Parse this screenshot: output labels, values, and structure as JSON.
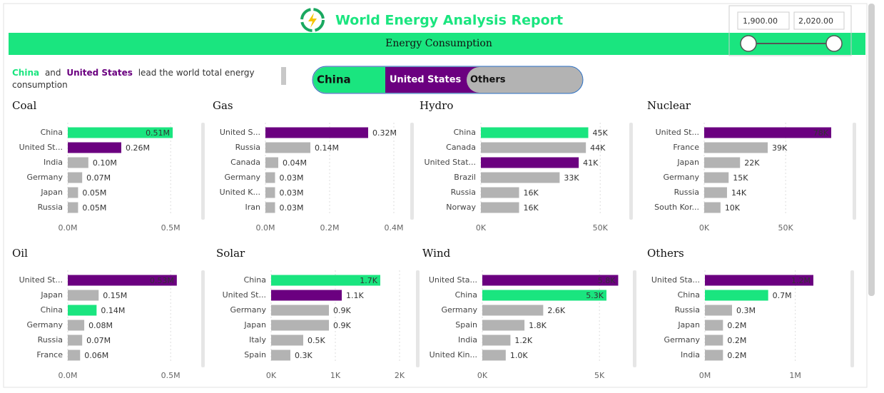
{
  "header": {
    "title": "World Energy Analysis Report",
    "subtitle": "Energy Consumption"
  },
  "year_slider": {
    "from": "1,900.00",
    "to": "2,020.00"
  },
  "summary": [
    "China",
    "and",
    "United States",
    "lead the world total energy",
    "consumption"
  ],
  "legend_buttons": [
    "China",
    "United States",
    "Others"
  ],
  "chart_data": [
    {
      "type": "bar",
      "orientation": "horizontal",
      "title": "Coal",
      "categories": [
        "China",
        "United St...",
        "India",
        "Germany",
        "Japan",
        "Russia"
      ],
      "values": [
        0.51,
        0.26,
        0.1,
        0.07,
        0.05,
        0.05
      ],
      "value_labels": [
        "0.51M",
        "0.26M",
        "0.10M",
        "0.07M",
        "0.05M",
        "0.05M"
      ],
      "colors": [
        "#1ae57f",
        "#6b0080",
        "#b3b3b3",
        "#b3b3b3",
        "#b3b3b3",
        "#b3b3b3"
      ],
      "xlim": [
        0,
        0.6
      ],
      "xticks": [
        {
          "value": 0,
          "label": "0.0M"
        },
        {
          "value": 0.5,
          "label": "0.5M"
        }
      ],
      "grid": true
    },
    {
      "type": "bar",
      "orientation": "horizontal",
      "title": "Gas",
      "categories": [
        "United S...",
        "Russia",
        "Canada",
        "Germany",
        "United K...",
        "Iran"
      ],
      "values": [
        0.32,
        0.14,
        0.04,
        0.03,
        0.03,
        0.03
      ],
      "value_labels": [
        "0.32M",
        "0.14M",
        "0.04M",
        "0.03M",
        "0.03M",
        "0.03M"
      ],
      "colors": [
        "#6b0080",
        "#b3b3b3",
        "#b3b3b3",
        "#b3b3b3",
        "#b3b3b3",
        "#b3b3b3"
      ],
      "xlim": [
        0,
        0.42
      ],
      "xticks": [
        {
          "value": 0,
          "label": "0.0M"
        },
        {
          "value": 0.2,
          "label": "0.2M"
        },
        {
          "value": 0.4,
          "label": "0.4M"
        }
      ],
      "grid": true
    },
    {
      "type": "bar",
      "orientation": "horizontal",
      "title": "Hydro",
      "categories": [
        "China",
        "Canada",
        "United Stat...",
        "Brazil",
        "Russia",
        "Norway"
      ],
      "values": [
        45,
        44,
        41,
        33,
        16,
        16
      ],
      "value_labels": [
        "45K",
        "44K",
        "41K",
        "33K",
        "16K",
        "16K"
      ],
      "colors": [
        "#1ae57f",
        "#b3b3b3",
        "#6b0080",
        "#b3b3b3",
        "#b3b3b3",
        "#b3b3b3"
      ],
      "xlim": [
        0,
        58
      ],
      "xticks": [
        {
          "value": 0,
          "label": "0K"
        },
        {
          "value": 50,
          "label": "50K"
        }
      ],
      "grid": true
    },
    {
      "type": "bar",
      "orientation": "horizontal",
      "title": "Nuclear",
      "categories": [
        "United St...",
        "France",
        "Japan",
        "Germany",
        "Russia",
        "South Kor..."
      ],
      "values": [
        78,
        39,
        22,
        15,
        14,
        10
      ],
      "value_labels": [
        "78K",
        "39K",
        "22K",
        "15K",
        "14K",
        "10K"
      ],
      "colors": [
        "#6b0080",
        "#b3b3b3",
        "#b3b3b3",
        "#b3b3b3",
        "#b3b3b3",
        "#b3b3b3"
      ],
      "xlim": [
        0,
        85
      ],
      "xticks": [
        {
          "value": 0,
          "label": "0K"
        },
        {
          "value": 50,
          "label": "50K"
        }
      ],
      "grid": true
    },
    {
      "type": "bar",
      "orientation": "horizontal",
      "title": "Oil",
      "categories": [
        "United St...",
        "Japan",
        "China",
        "Germany",
        "Russia",
        "France"
      ],
      "values": [
        0.53,
        0.15,
        0.14,
        0.08,
        0.07,
        0.06
      ],
      "value_labels": [
        "0.53M",
        "0.15M",
        "0.14M",
        "0.08M",
        "0.07M",
        "0.06M"
      ],
      "colors": [
        "#6b0080",
        "#b3b3b3",
        "#1ae57f",
        "#b3b3b3",
        "#b3b3b3",
        "#b3b3b3"
      ],
      "xlim": [
        0,
        0.6
      ],
      "xticks": [
        {
          "value": 0,
          "label": "0.0M"
        },
        {
          "value": 0.5,
          "label": "0.5M"
        }
      ],
      "grid": true
    },
    {
      "type": "bar",
      "orientation": "horizontal",
      "title": "Solar",
      "categories": [
        "China",
        "United St...",
        "Germany",
        "Japan",
        "Italy",
        "Spain"
      ],
      "values": [
        1.7,
        1.1,
        0.9,
        0.9,
        0.5,
        0.3
      ],
      "value_labels": [
        "1.7K",
        "1.1K",
        "0.9K",
        "0.9K",
        "0.5K",
        "0.3K"
      ],
      "colors": [
        "#1ae57f",
        "#6b0080",
        "#b3b3b3",
        "#b3b3b3",
        "#b3b3b3",
        "#b3b3b3"
      ],
      "xlim": [
        0,
        2.1
      ],
      "xticks": [
        {
          "value": 0,
          "label": "0K"
        },
        {
          "value": 1,
          "label": "1K"
        },
        {
          "value": 2,
          "label": "2K"
        }
      ],
      "grid": true
    },
    {
      "type": "bar",
      "orientation": "horizontal",
      "title": "Wind",
      "categories": [
        "United Sta...",
        "China",
        "Germany",
        "Spain",
        "India",
        "United Kin..."
      ],
      "values": [
        5.8,
        5.3,
        2.6,
        1.8,
        1.2,
        1.0
      ],
      "value_labels": [
        "5.8K",
        "5.3K",
        "2.6K",
        "1.8K",
        "1.2K",
        "1.0K"
      ],
      "colors": [
        "#6b0080",
        "#1ae57f",
        "#b3b3b3",
        "#b3b3b3",
        "#b3b3b3",
        "#b3b3b3"
      ],
      "xlim": [
        0,
        6
      ],
      "xticks": [
        {
          "value": 0,
          "label": "0K"
        },
        {
          "value": 5,
          "label": "5K"
        }
      ],
      "grid": true
    },
    {
      "type": "bar",
      "orientation": "horizontal",
      "title": "Others",
      "categories": [
        "United Sta...",
        "China",
        "Russia",
        "Japan",
        "Germany",
        "India"
      ],
      "values": [
        1.2,
        0.7,
        0.3,
        0.2,
        0.2,
        0.2
      ],
      "value_labels": [
        "1.2M",
        "0.7M",
        "0.3M",
        "0.2M",
        "0.2M",
        "0.2M"
      ],
      "colors": [
        "#6b0080",
        "#1ae57f",
        "#b3b3b3",
        "#b3b3b3",
        "#b3b3b3",
        "#b3b3b3"
      ],
      "xlim": [
        0,
        1.5
      ],
      "xticks": [
        {
          "value": 0,
          "label": "0M"
        },
        {
          "value": 1,
          "label": "1M"
        }
      ],
      "grid": true
    }
  ]
}
